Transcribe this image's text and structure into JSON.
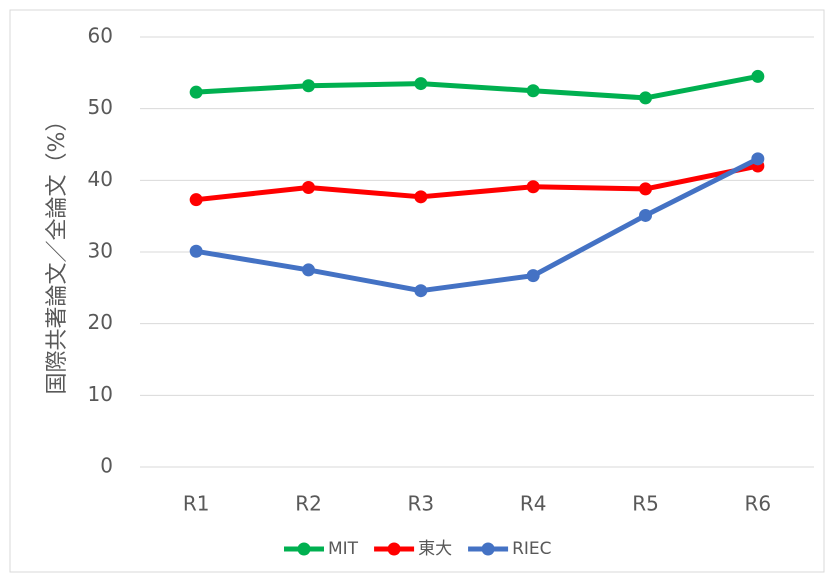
{
  "chart_data": {
    "type": "line",
    "y_label": "国際共著論文／全論文（%）",
    "categories": [
      "R1",
      "R2",
      "R3",
      "R4",
      "R5",
      "R6"
    ],
    "series": [
      {
        "name": "MIT",
        "color": "#00b050",
        "values": [
          52.3,
          53.2,
          53.5,
          52.5,
          51.5,
          54.5
        ]
      },
      {
        "name": "東大",
        "color": "#ff0000",
        "values": [
          37.3,
          39.0,
          37.7,
          39.1,
          38.8,
          42.0
        ]
      },
      {
        "name": "RIEC",
        "color": "#4472c4",
        "values": [
          30.1,
          27.5,
          24.6,
          26.7,
          35.1,
          43.0
        ]
      }
    ],
    "ylim": [
      0,
      60
    ],
    "yticks": [
      0,
      10,
      20,
      30,
      40,
      50,
      60
    ],
    "grid": true,
    "legend": "bottom"
  }
}
